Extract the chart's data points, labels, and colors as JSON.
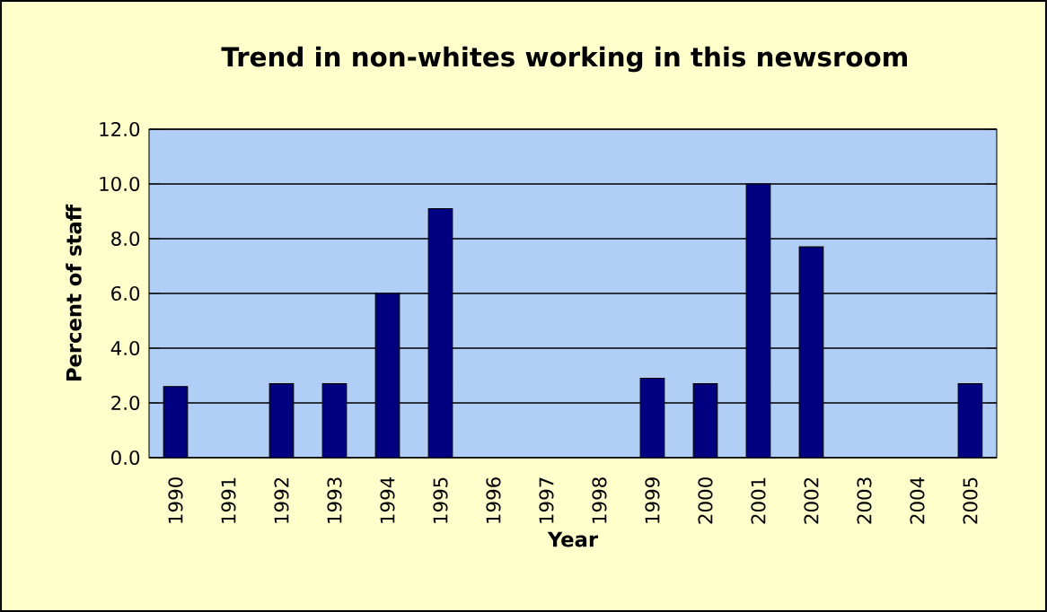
{
  "chart_data": {
    "type": "bar",
    "title": "Trend in non-whites working in this newsroom",
    "xlabel": "Year",
    "ylabel": "Percent of staff",
    "categories": [
      "1990",
      "1991",
      "1992",
      "1993",
      "1994",
      "1995",
      "1996",
      "1997",
      "1998",
      "1999",
      "2000",
      "2001",
      "2002",
      "2003",
      "2004",
      "2005"
    ],
    "values": [
      2.6,
      null,
      2.7,
      2.7,
      6.0,
      9.1,
      null,
      null,
      null,
      2.9,
      2.7,
      10.0,
      7.7,
      null,
      null,
      2.7
    ],
    "color": "#000080",
    "ylim": [
      0,
      12
    ],
    "yticks": [
      {
        "value": 0,
        "label": "0.0"
      },
      {
        "value": 2,
        "label": "2.0"
      },
      {
        "value": 4,
        "label": "4.0"
      },
      {
        "value": 6,
        "label": "6.0"
      },
      {
        "value": 8,
        "label": "8.0"
      },
      {
        "value": 10,
        "label": "10.0"
      },
      {
        "value": 12,
        "label": "12.0"
      }
    ],
    "grid": "y"
  }
}
